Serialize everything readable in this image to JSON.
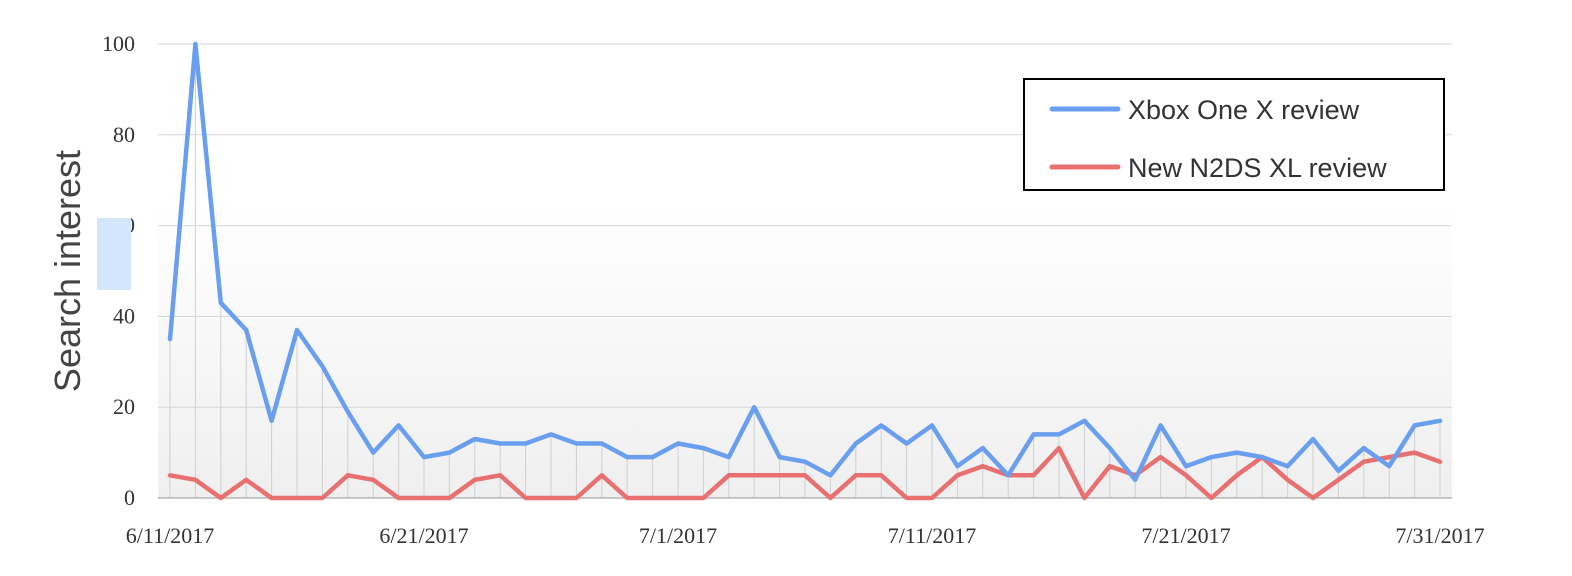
{
  "chart_data": {
    "type": "line",
    "ylabel": "Search interest",
    "xlabel": "",
    "title": "",
    "ylim": [
      0,
      100
    ],
    "yticks": [
      "0",
      "20",
      "40",
      "60",
      "80",
      "100"
    ],
    "x_tick_labels": [
      "6/11/2017",
      "6/21/2017",
      "7/1/2017",
      "7/11/2017",
      "7/21/2017",
      "7/31/2017"
    ],
    "x_start_date": "6/11/2017",
    "x_end_date": "7/31/2017",
    "grid": true,
    "legend_position": "top-right",
    "series": [
      {
        "name": "Xbox One X review",
        "color": "#6a9ff0",
        "values": [
          35,
          100,
          43,
          37,
          17,
          37,
          29,
          19,
          10,
          16,
          9,
          10,
          13,
          12,
          12,
          14,
          12,
          12,
          9,
          9,
          12,
          11,
          9,
          20,
          9,
          8,
          5,
          12,
          16,
          12,
          16,
          7,
          11,
          5,
          14,
          14,
          17,
          11,
          4,
          16,
          7,
          9,
          10,
          9,
          7,
          13,
          6,
          11,
          7,
          16,
          17
        ]
      },
      {
        "name": "New N2DS XL review",
        "color": "#e87070",
        "values": [
          5,
          4,
          0,
          4,
          0,
          0,
          0,
          5,
          4,
          0,
          0,
          0,
          4,
          5,
          0,
          0,
          0,
          5,
          0,
          0,
          0,
          0,
          5,
          5,
          5,
          5,
          0,
          5,
          5,
          0,
          0,
          5,
          7,
          5,
          5,
          11,
          0,
          7,
          5,
          9,
          5,
          0,
          5,
          9,
          4,
          0,
          4,
          8,
          9,
          10,
          8
        ]
      }
    ]
  }
}
